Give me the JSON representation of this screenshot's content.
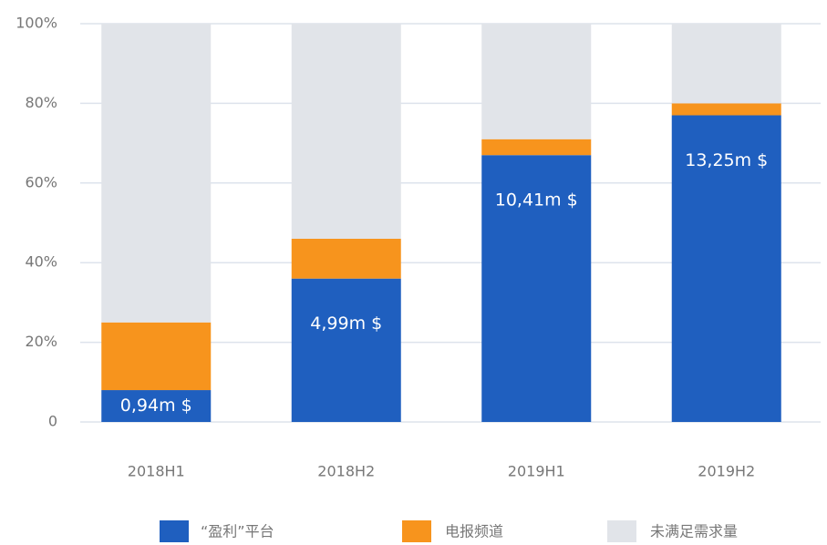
{
  "chart_data": {
    "type": "stacked_bar",
    "categories": [
      "2018H1",
      "2018H2",
      "2019H1",
      "2019H2"
    ],
    "series": [
      {
        "name": "“盈利”平台",
        "color": "#1f5fbf",
        "values": [
          8,
          36,
          67,
          77
        ]
      },
      {
        "name": "电报频道",
        "color": "#f7941d",
        "values": [
          17,
          10,
          4,
          3
        ]
      },
      {
        "name": "未满足需求量",
        "color": "#e1e4e9",
        "values": [
          75,
          54,
          29,
          20
        ]
      }
    ],
    "annotations": [
      "0,94m $",
      "4,99m $",
      "10,41m $",
      "13,25m $"
    ],
    "ylim": [
      0,
      100
    ],
    "yticks": [
      0,
      {
        "value": 20,
        "label": "20%"
      },
      {
        "value": 40,
        "label": "40%"
      },
      {
        "value": 60,
        "label": "60%"
      },
      {
        "value": 80,
        "label": "80%"
      },
      {
        "value": 100,
        "label": "100%"
      }
    ],
    "grid": true
  }
}
